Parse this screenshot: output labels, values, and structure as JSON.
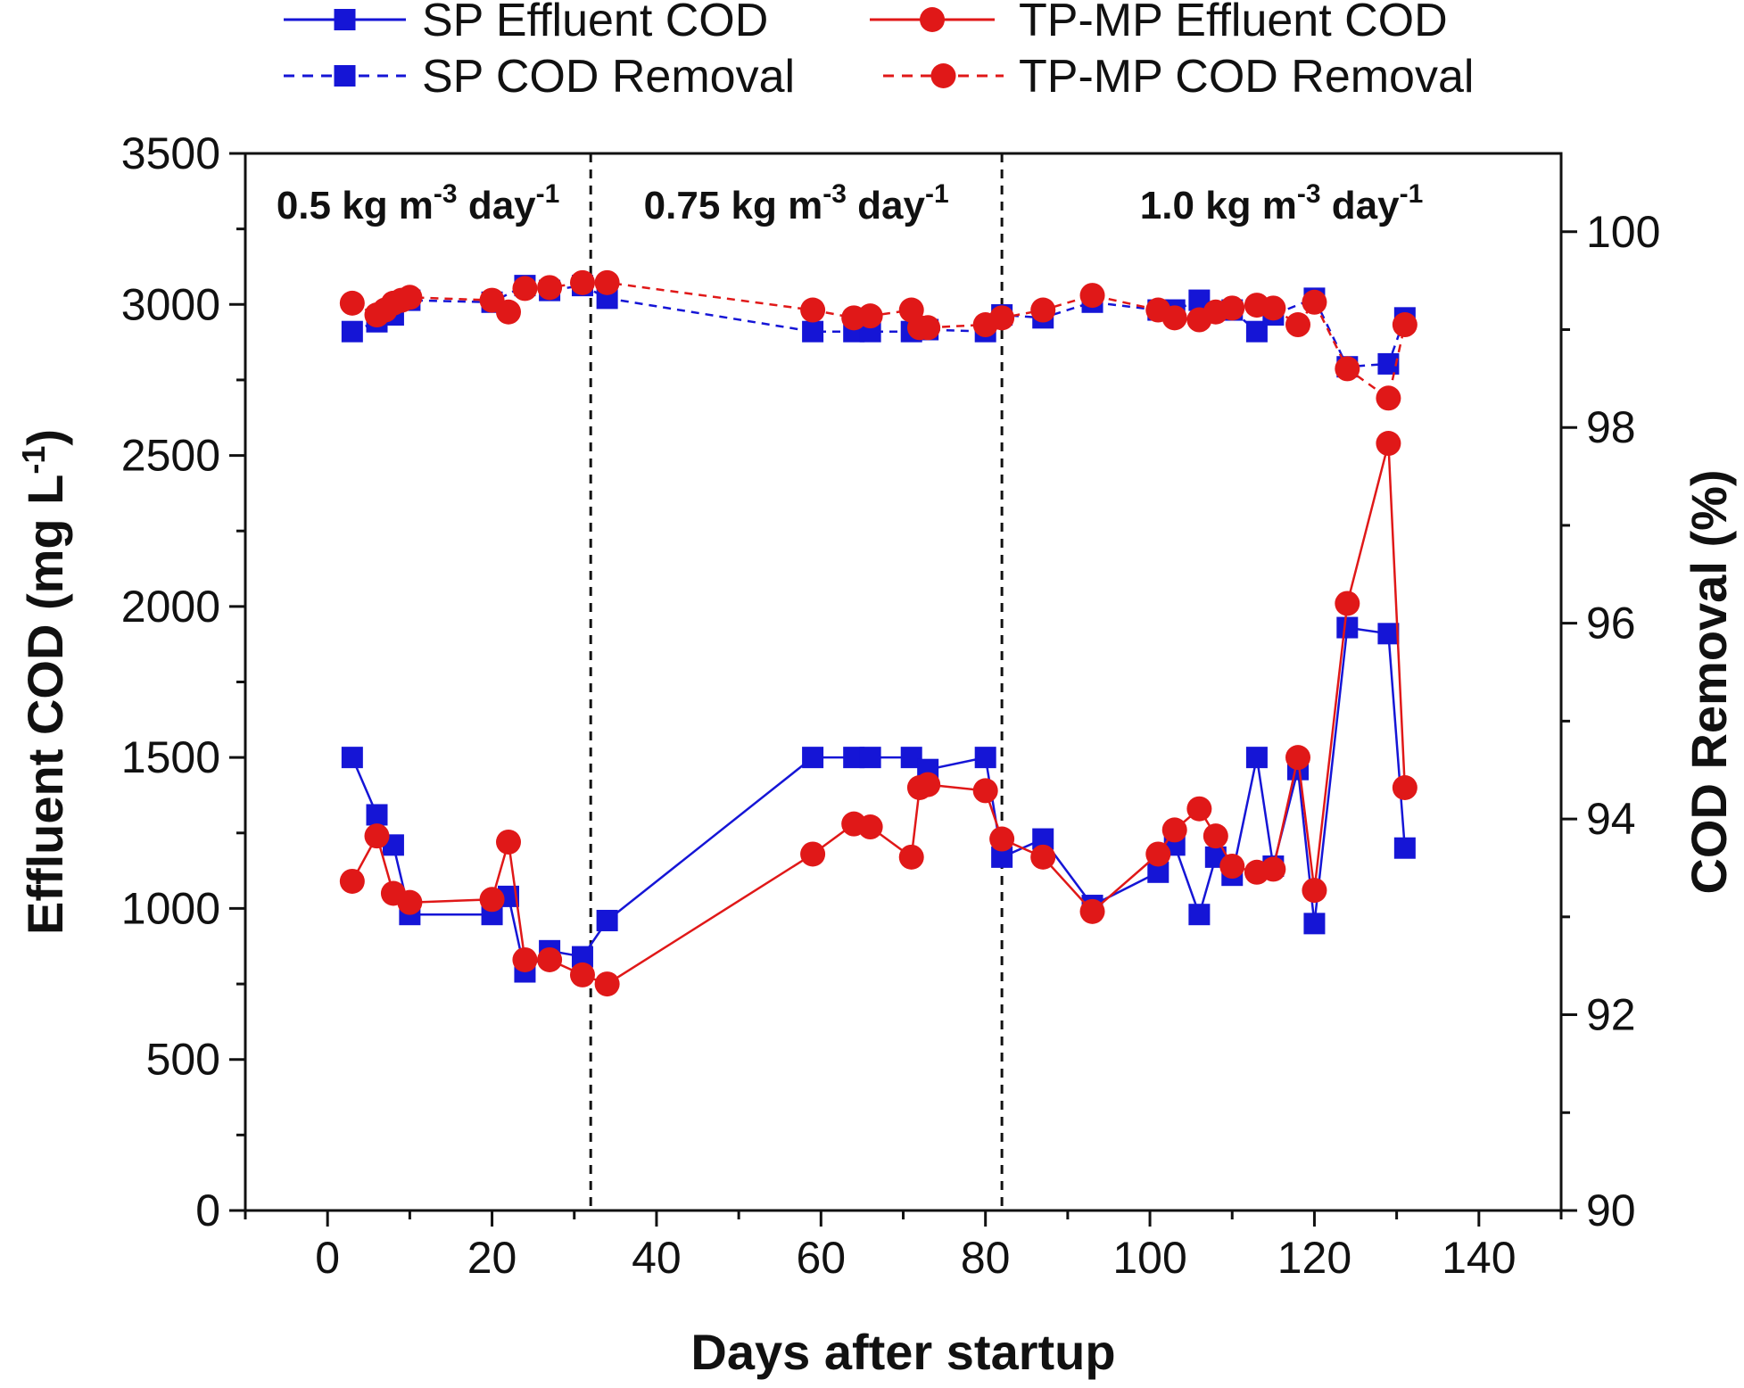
{
  "chart_data": {
    "type": "line",
    "xlabel": "Days after startup",
    "ylabel_left": "Effluent COD (mg L-1)",
    "ylabel_left_base": "Effluent COD (mg L",
    "ylabel_left_sup": "-1",
    "ylabel_left_close": ")",
    "ylabel_right": "COD Removal (%)",
    "xlim": [
      -10,
      150
    ],
    "ylim_left": [
      0,
      3500
    ],
    "ylim_right": [
      90,
      100.8
    ],
    "x_ticks": [
      0,
      20,
      40,
      60,
      80,
      100,
      120,
      140
    ],
    "y_left_ticks": [
      0,
      500,
      1000,
      1500,
      2000,
      2500,
      3000,
      3500
    ],
    "y_right_ticks": [
      90,
      92,
      94,
      96,
      98,
      100
    ],
    "phase_dividers": [
      32,
      82
    ],
    "phases": [
      {
        "base": "0.5 kg m",
        "sup1": "-3",
        "mid": " day",
        "sup2": "-1",
        "x_start": -10,
        "x_end": 32
      },
      {
        "base": "0.75 kg m",
        "sup1": "-3",
        "mid": " day",
        "sup2": "-1",
        "x_start": 32,
        "x_end": 82
      },
      {
        "base": "1.0 kg m",
        "sup1": "-3",
        "mid": " day",
        "sup2": "-1",
        "x_start": 82,
        "x_end": 150
      }
    ],
    "series": [
      {
        "name": "SP Effluent COD",
        "axis": "left",
        "color": "#1515d6",
        "marker": "square",
        "line": "solid",
        "x": [
          3,
          6,
          8,
          10,
          20,
          22,
          24,
          27,
          31,
          34,
          59,
          64,
          66,
          71,
          73,
          80,
          82,
          87,
          93,
          101,
          103,
          106,
          108,
          110,
          113,
          115,
          118,
          120,
          124,
          129,
          131
        ],
        "y": [
          1500,
          1310,
          1210,
          980,
          980,
          1040,
          790,
          860,
          840,
          960,
          1500,
          1500,
          1500,
          1500,
          1460,
          1500,
          1170,
          1230,
          1010,
          1120,
          1210,
          980,
          1170,
          1110,
          1500,
          1140,
          1460,
          950,
          1930,
          1910,
          1200
        ]
      },
      {
        "name": "TP-MP Effluent COD",
        "axis": "left",
        "color": "#e01818",
        "marker": "circle",
        "line": "solid",
        "x": [
          3,
          6,
          8,
          10,
          20,
          22,
          24,
          27,
          31,
          34,
          59,
          64,
          66,
          71,
          72,
          73,
          80,
          82,
          87,
          93,
          101,
          103,
          106,
          108,
          110,
          113,
          115,
          118,
          120,
          124,
          129,
          131
        ],
        "y": [
          1090,
          1240,
          1050,
          1020,
          1030,
          1220,
          830,
          830,
          780,
          750,
          1180,
          1280,
          1270,
          1170,
          1400,
          1410,
          1390,
          1230,
          1170,
          990,
          1180,
          1260,
          1330,
          1240,
          1140,
          1120,
          1130,
          1500,
          1060,
          2010,
          2540,
          1400
        ]
      },
      {
        "name": "SP COD Removal",
        "axis": "right",
        "color": "#1515d6",
        "marker": "square",
        "line": "dashed",
        "x": [
          3,
          6,
          8,
          10,
          20,
          24,
          27,
          31,
          34,
          59,
          64,
          66,
          71,
          73,
          80,
          82,
          87,
          93,
          101,
          103,
          106,
          110,
          113,
          115,
          120,
          124,
          129,
          131
        ],
        "y": [
          98.98,
          99.08,
          99.15,
          99.3,
          99.28,
          99.45,
          99.4,
          99.45,
          99.32,
          98.98,
          98.98,
          98.98,
          98.98,
          99.0,
          98.98,
          99.15,
          99.12,
          99.28,
          99.2,
          99.2,
          99.3,
          99.2,
          98.98,
          99.15,
          99.32,
          98.62,
          98.65,
          99.12
        ]
      },
      {
        "name": "TP-MP COD Removal",
        "axis": "right",
        "color": "#e01818",
        "marker": "circle",
        "line": "dashed",
        "x": [
          3,
          6,
          7,
          8,
          9,
          10,
          20,
          22,
          24,
          27,
          31,
          34,
          59,
          64,
          66,
          71,
          72,
          73,
          80,
          82,
          87,
          93,
          101,
          103,
          106,
          108,
          110,
          113,
          115,
          118,
          120,
          124,
          129,
          131
        ],
        "y": [
          99.27,
          99.15,
          99.2,
          99.27,
          99.3,
          99.33,
          99.3,
          99.18,
          99.42,
          99.43,
          99.48,
          99.48,
          99.2,
          99.12,
          99.14,
          99.2,
          99.02,
          99.02,
          99.05,
          99.12,
          99.2,
          99.35,
          99.2,
          99.12,
          99.1,
          99.18,
          99.22,
          99.25,
          99.22,
          99.05,
          99.28,
          98.6,
          98.3,
          99.05
        ]
      }
    ]
  }
}
